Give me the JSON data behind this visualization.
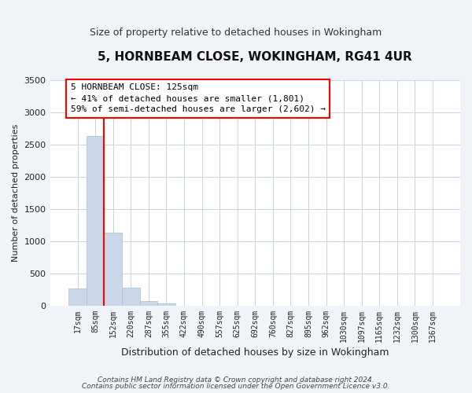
{
  "title": "5, HORNBEAM CLOSE, WOKINGHAM, RG41 4UR",
  "subtitle": "Size of property relative to detached houses in Wokingham",
  "xlabel": "Distribution of detached houses by size in Wokingham",
  "ylabel": "Number of detached properties",
  "bar_labels": [
    "17sqm",
    "85sqm",
    "152sqm",
    "220sqm",
    "287sqm",
    "355sqm",
    "422sqm",
    "490sqm",
    "557sqm",
    "625sqm",
    "692sqm",
    "760sqm",
    "827sqm",
    "895sqm",
    "962sqm",
    "1030sqm",
    "1097sqm",
    "1165sqm",
    "1232sqm",
    "1300sqm",
    "1367sqm"
  ],
  "bar_heights": [
    275,
    2640,
    1140,
    280,
    80,
    40,
    0,
    0,
    0,
    0,
    0,
    0,
    0,
    0,
    0,
    0,
    0,
    0,
    0,
    0,
    0
  ],
  "bar_color": "#c8d8e8",
  "bar_edge_color": "#a8bece",
  "vline_x": 1.5,
  "vline_color": "red",
  "ylim": [
    0,
    3500
  ],
  "yticks": [
    0,
    500,
    1000,
    1500,
    2000,
    2500,
    3000,
    3500
  ],
  "annotation_box_text": "5 HORNBEAM CLOSE: 125sqm\n← 41% of detached houses are smaller (1,801)\n59% of semi-detached houses are larger (2,602) →",
  "annotation_box_color": "red",
  "annotation_box_fill": "white",
  "footer_line1": "Contains HM Land Registry data © Crown copyright and database right 2024.",
  "footer_line2": "Contains public sector information licensed under the Open Government Licence v3.0.",
  "bg_color": "#f0f4f8",
  "plot_bg_color": "#ffffff",
  "grid_color": "#c8d4e0"
}
